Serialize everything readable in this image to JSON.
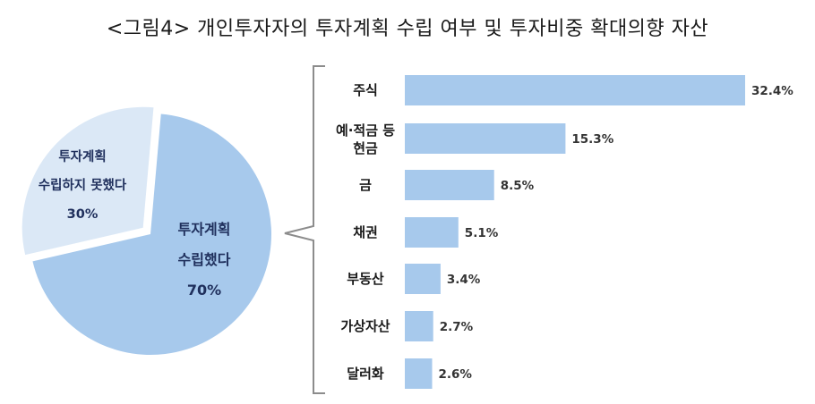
{
  "title": "<그림4> 개인투자자의 투자계획 수립 여부 및 투자비중 확대의향 자산",
  "colors": {
    "bar": "#a7c9ec",
    "pie_main": "#a7c9ec",
    "pie_minor": "#dbe8f6",
    "bracket": "#8c8c8c",
    "pie_text": "#1f2f5c"
  },
  "chart_data": [
    {
      "type": "pie",
      "slices": [
        {
          "label_lines": [
            "투자계획",
            "수립했다",
            "70%"
          ],
          "value": 70
        },
        {
          "label_lines": [
            "투자계획",
            "수립하지 못했다",
            "30%"
          ],
          "value": 30
        }
      ]
    },
    {
      "type": "bar",
      "orientation": "horizontal",
      "categories": [
        [
          "주식"
        ],
        [
          "예·적금 등",
          "현금"
        ],
        [
          "금"
        ],
        [
          "채권"
        ],
        [
          "부동산"
        ],
        [
          "가상자산"
        ],
        [
          "달러화"
        ]
      ],
      "values": [
        32.4,
        15.3,
        8.5,
        5.1,
        3.4,
        2.7,
        2.6
      ],
      "value_labels": [
        "32.4%",
        "15.3%",
        "8.5%",
        "5.1%",
        "3.4%",
        "2.7%",
        "2.6%"
      ],
      "xlim": [
        0,
        32.4
      ],
      "grid": false,
      "legend": "none"
    }
  ]
}
